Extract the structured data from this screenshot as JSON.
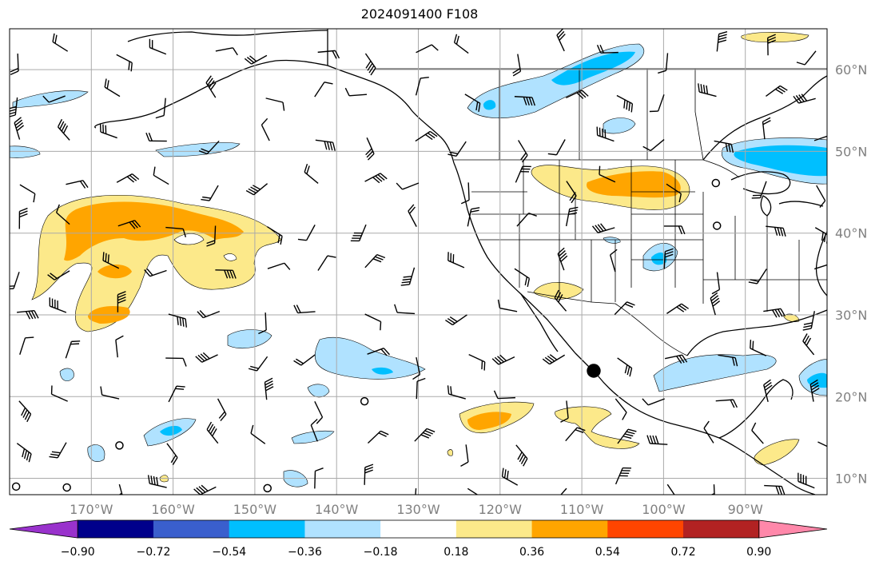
{
  "title": "2024091400 F108",
  "map": {
    "lon_range": [
      -180,
      -80
    ],
    "lat_range": [
      8,
      65
    ],
    "lon_ticks": [
      {
        "value": -170,
        "label": "170°W"
      },
      {
        "value": -160,
        "label": "160°W"
      },
      {
        "value": -150,
        "label": "150°W"
      },
      {
        "value": -140,
        "label": "140°W"
      },
      {
        "value": -130,
        "label": "130°W"
      },
      {
        "value": -120,
        "label": "120°W"
      },
      {
        "value": -110,
        "label": "110°W"
      },
      {
        "value": -100,
        "label": "100°W"
      },
      {
        "value": -90,
        "label": "90°W"
      }
    ],
    "lat_ticks": [
      {
        "value": 10,
        "label": "10°N"
      },
      {
        "value": 20,
        "label": "20°N"
      },
      {
        "value": 30,
        "label": "30°N"
      },
      {
        "value": 40,
        "label": "40°N"
      },
      {
        "value": 50,
        "label": "50°N"
      },
      {
        "value": 60,
        "label": "60°N"
      }
    ],
    "grid": true
  },
  "colorbar": {
    "levels": [
      "−0.90",
      "−0.72",
      "−0.54",
      "−0.36",
      "−0.18",
      "0.18",
      "0.36",
      "0.54",
      "0.72",
      "0.90"
    ],
    "colors": [
      "#9932cc",
      "#00008b",
      "#3a5fcd",
      "#00bfff",
      "#b0e2ff",
      "#ffffff",
      "#fce98a",
      "#ffa500",
      "#ff4500",
      "#b22222",
      "#ff88aa"
    ],
    "extend": "both"
  },
  "colors": {
    "light_blue": "#b0e2ff",
    "blue": "#00bfff",
    "yellow": "#fce98a",
    "orange": "#ffa500",
    "grid": "#aaaaaa",
    "tick_label": "#808080"
  }
}
